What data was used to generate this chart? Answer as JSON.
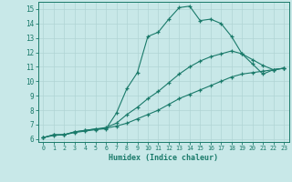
{
  "title": "",
  "xlabel": "Humidex (Indice chaleur)",
  "ylabel": "",
  "xlim": [
    -0.5,
    23.5
  ],
  "ylim": [
    5.8,
    15.5
  ],
  "yticks": [
    6,
    7,
    8,
    9,
    10,
    11,
    12,
    13,
    14,
    15
  ],
  "xticks": [
    0,
    1,
    2,
    3,
    4,
    5,
    6,
    7,
    8,
    9,
    10,
    11,
    12,
    13,
    14,
    15,
    16,
    17,
    18,
    19,
    20,
    21,
    22,
    23
  ],
  "bg_color": "#c8e8e8",
  "line_color": "#1a7a6a",
  "grid_color": "#b0d4d4",
  "lines": [
    {
      "x": [
        0,
        1,
        2,
        3,
        4,
        5,
        6,
        7,
        8,
        9,
        10,
        11,
        12,
        13,
        14,
        15,
        16,
        17,
        18,
        19,
        20,
        21,
        22,
        23
      ],
      "y": [
        6.1,
        6.3,
        6.3,
        6.5,
        6.6,
        6.7,
        6.7,
        7.8,
        9.5,
        10.6,
        13.1,
        13.4,
        14.3,
        15.1,
        15.2,
        14.2,
        14.3,
        14.0,
        13.1,
        11.9,
        11.2,
        10.5,
        10.8,
        10.9
      ]
    },
    {
      "x": [
        0,
        1,
        2,
        3,
        4,
        5,
        6,
        7,
        8,
        9,
        10,
        11,
        12,
        13,
        14,
        15,
        16,
        17,
        18,
        19,
        20,
        21,
        22,
        23
      ],
      "y": [
        6.1,
        6.3,
        6.3,
        6.5,
        6.6,
        6.7,
        6.8,
        7.1,
        7.7,
        8.2,
        8.8,
        9.3,
        9.9,
        10.5,
        11.0,
        11.4,
        11.7,
        11.9,
        12.1,
        11.9,
        11.5,
        11.1,
        10.8,
        10.9
      ]
    },
    {
      "x": [
        0,
        1,
        2,
        3,
        4,
        5,
        6,
        7,
        8,
        9,
        10,
        11,
        12,
        13,
        14,
        15,
        16,
        17,
        18,
        19,
        20,
        21,
        22,
        23
      ],
      "y": [
        6.1,
        6.25,
        6.3,
        6.45,
        6.55,
        6.65,
        6.75,
        6.9,
        7.1,
        7.4,
        7.7,
        8.0,
        8.4,
        8.8,
        9.1,
        9.4,
        9.7,
        10.0,
        10.3,
        10.5,
        10.6,
        10.7,
        10.8,
        10.9
      ]
    }
  ]
}
